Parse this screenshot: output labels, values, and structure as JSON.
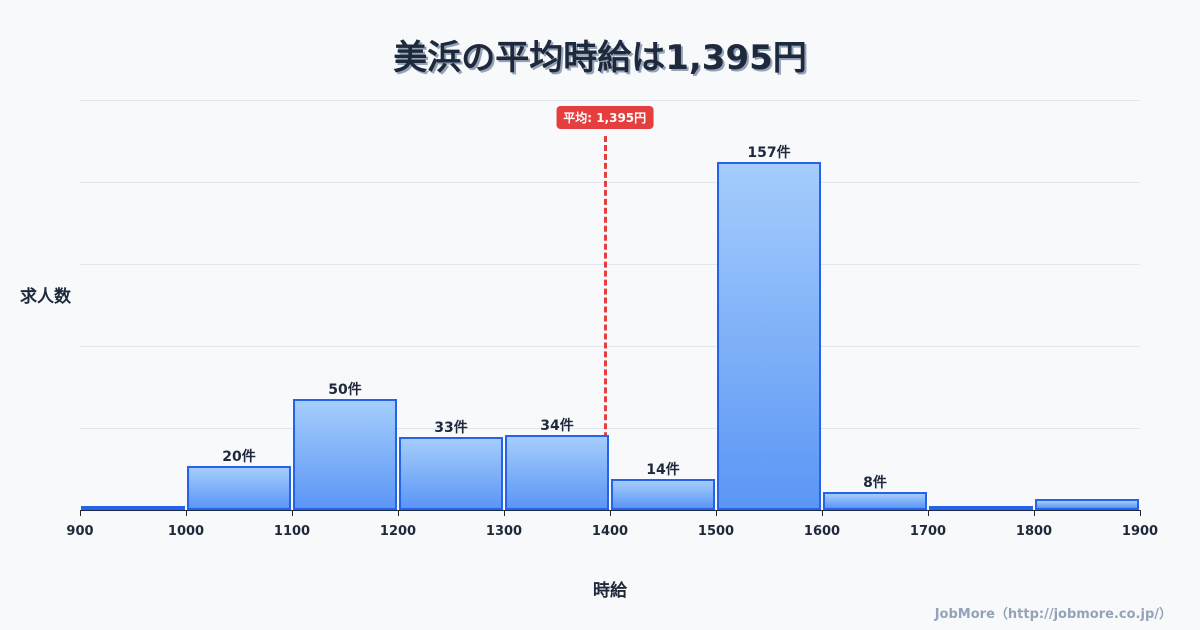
{
  "title": "美浜の平均時給は1,395円",
  "y_axis_label": "求人数",
  "x_axis_label": "時給",
  "credit": "JobMore（http://jobmore.co.jp/）",
  "average_badge": "平均: 1,395円",
  "colors": {
    "bar_border": "#2563eb",
    "bar_top": "#a5cdfc",
    "bar_bottom": "#5b96f5",
    "average_line": "#e53e3e",
    "text": "#1e293b"
  },
  "chart_data": {
    "type": "bar",
    "title": "美浜の平均時給は1,395円",
    "xlabel": "時給",
    "ylabel": "求人数",
    "categories": [
      "900-1000",
      "1000-1100",
      "1100-1200",
      "1200-1300",
      "1300-1400",
      "1400-1500",
      "1500-1600",
      "1600-1700",
      "1700-1800",
      "1800-1900"
    ],
    "bin_edges": [
      900,
      1000,
      1100,
      1200,
      1300,
      1400,
      1500,
      1600,
      1700,
      1800,
      1900
    ],
    "values": [
      1,
      20,
      50,
      33,
      34,
      14,
      157,
      8,
      2,
      5
    ],
    "data_labels": [
      "",
      "20件",
      "50件",
      "33件",
      "34件",
      "14件",
      "157件",
      "8件",
      "",
      ""
    ],
    "x_ticks": [
      "900",
      "1000",
      "1100",
      "1200",
      "1300",
      "1400",
      "1500",
      "1600",
      "1700",
      "1800",
      "1900"
    ],
    "average": 1395,
    "average_label": "平均: 1,395円",
    "ylim": [
      0,
      185
    ],
    "grid": true,
    "legend": "none"
  }
}
